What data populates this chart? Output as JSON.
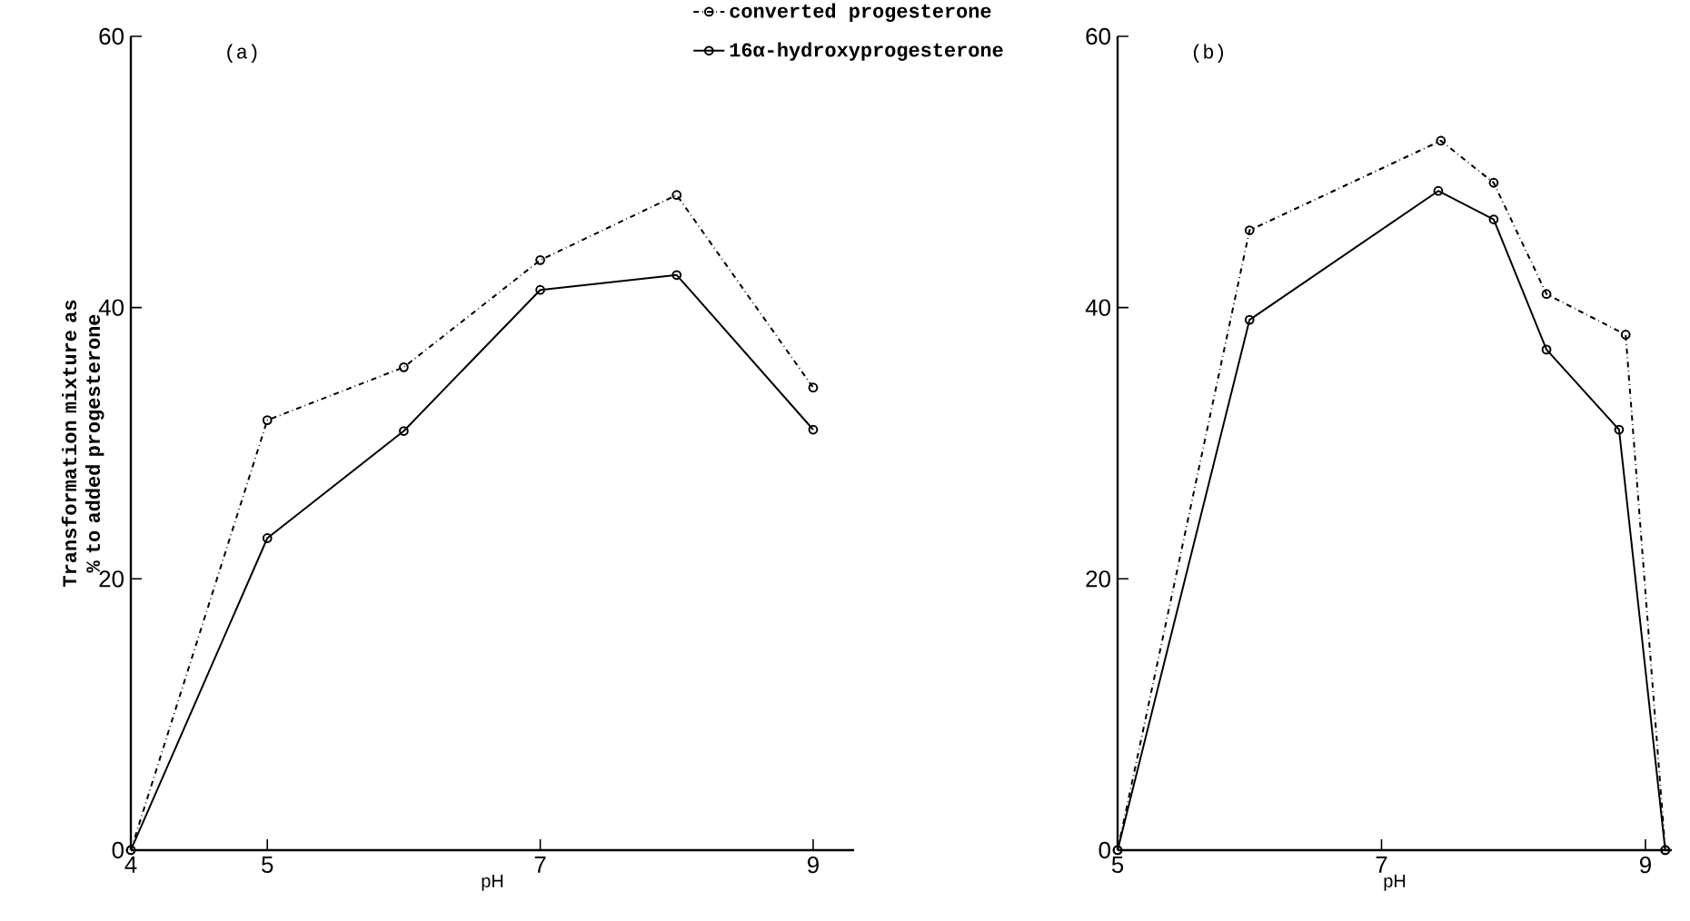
{
  "chart_data": [
    {
      "type": "line",
      "title": "(a)",
      "xlabel": "pH",
      "ylabel": "Transformation mixture as % to added progesterone",
      "xlim": [
        4,
        9.3
      ],
      "ylim": [
        0,
        60
      ],
      "xticks": [
        4,
        5,
        7,
        9
      ],
      "yticks": [
        0,
        20,
        40,
        60
      ],
      "marker": "circle",
      "legend": "top right",
      "series": [
        {
          "name": "converted progesterone",
          "color": "#000000",
          "line_style": "dashdot",
          "x": [
            4,
            5,
            6,
            7,
            8,
            9
          ],
          "values": [
            0,
            31.7,
            35.6,
            43.5,
            48.3,
            34.1
          ]
        },
        {
          "name": "16α-hydroxyprogesterone",
          "color": "#000000",
          "line_style": "solid",
          "x": [
            4,
            5,
            6,
            7,
            8,
            9
          ],
          "values": [
            0,
            23.0,
            30.9,
            41.3,
            42.4,
            31.0
          ]
        }
      ]
    },
    {
      "type": "line",
      "title": "(b)",
      "xlabel": "pH",
      "xlim": [
        5,
        9.2
      ],
      "ylim": [
        0,
        60
      ],
      "xticks": [
        5,
        7,
        9
      ],
      "yticks": [
        0,
        20,
        40,
        60
      ],
      "marker": "circle",
      "series": [
        {
          "color": "#000000",
          "line_style": "dashdot",
          "x": [
            5,
            6.0,
            7.45,
            7.85,
            8.25,
            8.85,
            9.15
          ],
          "values": [
            0,
            45.7,
            52.3,
            49.2,
            41.0,
            38.0,
            0
          ]
        },
        {
          "color": "#000000",
          "line_style": "solid",
          "x": [
            5,
            6.0,
            7.43,
            7.85,
            8.25,
            8.8,
            9.15
          ],
          "values": [
            0,
            39.1,
            48.6,
            46.5,
            36.9,
            31.0,
            0
          ]
        }
      ]
    }
  ]
}
